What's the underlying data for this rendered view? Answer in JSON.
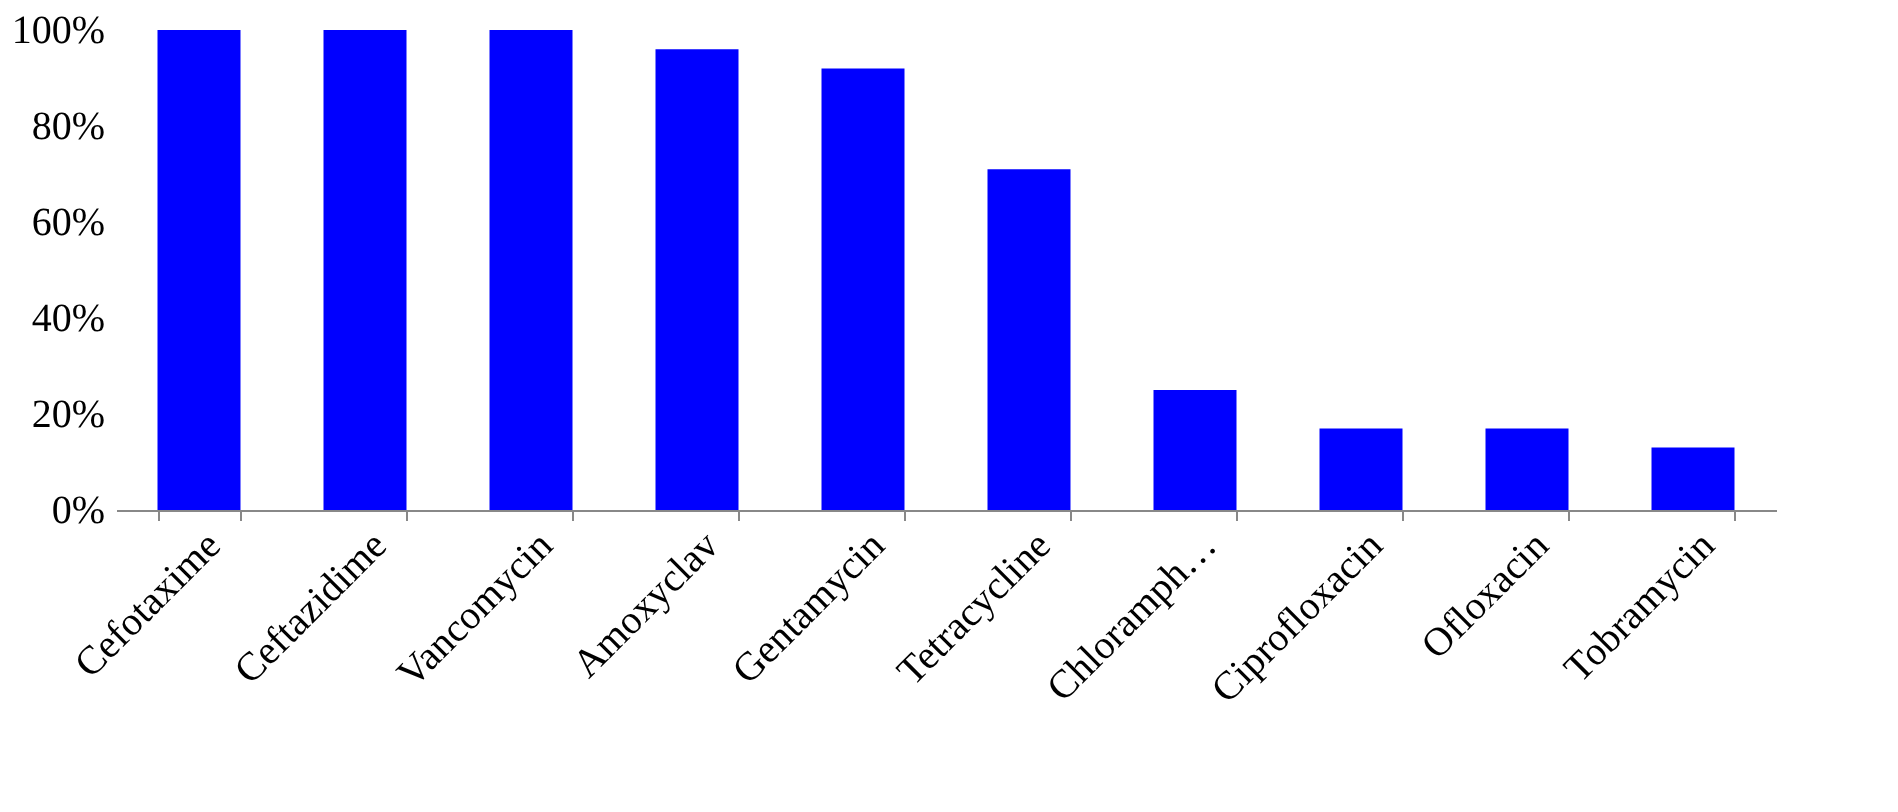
{
  "chart_data": {
    "type": "bar",
    "categories": [
      "Cefotaxime",
      "Ceftazidime",
      "Vancomycin",
      "Amoxyclav",
      "Gentamycin",
      "Tetracycline",
      "Chloramph…",
      "Ciprofloxacin",
      "Ofloxacin",
      "Tobramycin"
    ],
    "values": [
      100,
      100,
      100,
      96,
      92,
      71,
      25,
      17,
      17,
      13
    ],
    "color": "#0000ff",
    "ylim": [
      0,
      100
    ],
    "yticks": [
      {
        "value": 0,
        "label": "0%"
      },
      {
        "value": 20,
        "label": "20%"
      },
      {
        "value": 40,
        "label": "40%"
      },
      {
        "value": 60,
        "label": "60%"
      },
      {
        "value": 80,
        "label": "80%"
      },
      {
        "value": 100,
        "label": "100%"
      }
    ],
    "grid": false
  }
}
